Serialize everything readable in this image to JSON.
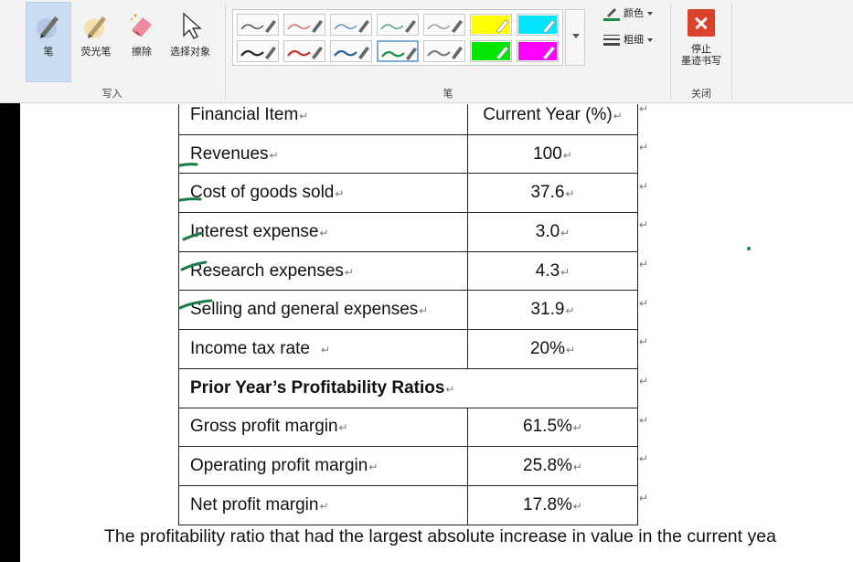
{
  "ribbon": {
    "write_group": {
      "label": "写入",
      "tools": [
        {
          "label": "笔",
          "icon": "pen-icon",
          "active": true
        },
        {
          "label": "荧光笔",
          "icon": "highlighter-icon",
          "active": false
        },
        {
          "label": "擦除",
          "icon": "eraser-icon",
          "active": false
        },
        {
          "label": "选择对象",
          "icon": "select-arrow-icon",
          "active": false
        }
      ]
    },
    "pen_group": {
      "label": "笔",
      "color_label": "颜色",
      "thickness_label": "粗细",
      "pens": [
        {
          "color": "#333333",
          "thin": true
        },
        {
          "color": "#d9534f",
          "thin": true
        },
        {
          "color": "#4a78b5",
          "thin": true
        },
        {
          "color": "#3a8f6a",
          "thin": true
        },
        {
          "color": "#888888",
          "thin": true
        },
        {
          "color": "#ffff00",
          "highlighter": true
        },
        {
          "color": "#00e5ff",
          "highlighter": true
        },
        {
          "color": "#222222",
          "thin": false
        },
        {
          "color": "#d12b2b",
          "thin": false
        },
        {
          "color": "#2a5aa8",
          "thin": false
        },
        {
          "color": "#1e8a4a",
          "thin": false,
          "selected": true
        },
        {
          "color": "#7a7a7a",
          "thin": false
        },
        {
          "color": "#00e600",
          "highlighter": true
        },
        {
          "color": "#ff00ff",
          "highlighter": true
        }
      ]
    },
    "close_group": {
      "label": "关闭",
      "stop_label_line1": "停止",
      "stop_label_line2": "墨迹书写"
    }
  },
  "table": {
    "header": {
      "item": "Financial Item",
      "value": "Current Year (%)"
    },
    "rows": [
      {
        "item": "Revenues",
        "value": "100"
      },
      {
        "item": "Cost of goods sold",
        "value": "37.6"
      },
      {
        "item": "Interest expense",
        "value": "3.0"
      },
      {
        "item": "Research expenses",
        "value": "4.3"
      },
      {
        "item": "Selling and general expenses",
        "value": "31.9"
      },
      {
        "item": "Income tax rate",
        "value": "20%"
      }
    ],
    "section_title": "Prior Year’s Profitability Ratios",
    "ratios": [
      {
        "item": "Gross profit margin",
        "value": "61.5%"
      },
      {
        "item": "Operating profit margin",
        "value": "25.8%"
      },
      {
        "item": "Net profit margin",
        "value": "17.8%"
      }
    ],
    "paragraph_mark": "↵"
  },
  "question_text": "The profitability ratio that had the largest absolute increase in value in the current yea",
  "ink_color": "#1e7a4a"
}
